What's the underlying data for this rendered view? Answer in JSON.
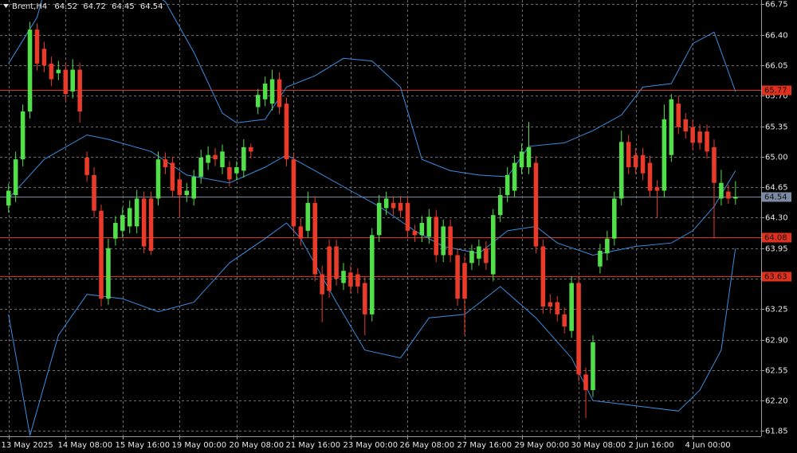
{
  "chart_data": {
    "type": "candlestick",
    "title": "Brent,H4",
    "header_values": [
      64.52,
      64.72,
      64.45,
      64.54
    ],
    "open": [
      64.44,
      64.56,
      64.97,
      65.52,
      66.46,
      66.24,
      66.07,
      65.96,
      66.0,
      65.75,
      66.0,
      64.99,
      64.79,
      64.38,
      63.37,
      64.06,
      64.15,
      64.2,
      64.2,
      64.52,
      64.52,
      64.52,
      64.97,
      64.93,
      64.74,
      64.56,
      64.52,
      64.77,
      64.93,
      65.02,
      64.88,
      64.88,
      64.81,
      64.84,
      65.11,
      65.57,
      65.66,
      65.61,
      65.89,
      65.61,
      64.97,
      64.2,
      64.15,
      64.47,
      63.65,
      63.97,
      63.97,
      63.55,
      63.67,
      63.65,
      63.55,
      63.19,
      64.1,
      64.41,
      64.47,
      64.47,
      64.47,
      64.15,
      64.1,
      64.08,
      64.31,
      63.87,
      64.2,
      63.87,
      63.78,
      63.78,
      63.83,
      63.95,
      63.65,
      64.33,
      64.56,
      64.61,
      64.88,
      64.88,
      64.93,
      63.97,
      63.33,
      63.33,
      63.19,
      63.0,
      63.55,
      62.5,
      62.32,
      63.74,
      63.89,
      64.06,
      64.52,
      65.17,
      65.02,
      65.02,
      64.93,
      64.65,
      64.61,
      65.02,
      65.61,
      65.43,
      65.34,
      65.29,
      65.29,
      65.11,
      64.52,
      64.6,
      64.52
    ],
    "high": [
      64.69,
      65.06,
      65.6,
      66.55,
      66.53,
      66.32,
      66.15,
      66.1,
      66.08,
      66.12,
      66.08,
      65.06,
      64.88,
      64.45,
      64.06,
      64.32,
      64.42,
      64.5,
      64.62,
      64.6,
      64.6,
      65.06,
      65.05,
      65.0,
      64.82,
      64.7,
      64.85,
      65.08,
      65.12,
      65.1,
      65.14,
      64.95,
      64.95,
      65.2,
      65.15,
      65.78,
      65.92,
      66.0,
      65.97,
      65.68,
      65.05,
      64.3,
      64.6,
      64.55,
      63.75,
      64.05,
      64.05,
      63.78,
      63.75,
      63.72,
      63.62,
      64.18,
      64.56,
      64.6,
      64.55,
      64.55,
      64.55,
      64.22,
      64.32,
      64.4,
      64.39,
      64.28,
      64.28,
      63.95,
      63.86,
      63.99,
      64.05,
      64.03,
      64.4,
      64.65,
      64.88,
      65.02,
      65.15,
      65.4,
      65.01,
      64.05,
      63.42,
      63.4,
      63.27,
      63.63,
      63.63,
      62.58,
      62.95,
      64.0,
      64.15,
      64.6,
      65.3,
      65.25,
      65.1,
      65.1,
      65.01,
      64.73,
      65.6,
      65.72,
      65.7,
      65.5,
      65.42,
      65.37,
      65.37,
      65.2,
      64.85,
      64.68,
      64.72
    ],
    "low": [
      64.36,
      64.48,
      64.89,
      65.44,
      65.99,
      65.97,
      65.81,
      65.88,
      65.64,
      65.67,
      65.39,
      64.71,
      64.3,
      63.28,
      63.3,
      63.98,
      64.07,
      64.12,
      64.12,
      63.89,
      63.87,
      64.44,
      64.8,
      64.53,
      64.3,
      64.48,
      64.44,
      64.69,
      64.85,
      64.89,
      64.8,
      64.66,
      64.73,
      64.76,
      64.98,
      65.49,
      65.58,
      65.53,
      65.49,
      64.89,
      64.12,
      63.98,
      64.07,
      63.57,
      63.1,
      63.38,
      63.52,
      63.47,
      63.43,
      63.43,
      62.95,
      63.11,
      64.02,
      64.33,
      64.33,
      64.3,
      64.07,
      64.02,
      64.02,
      64.0,
      63.79,
      63.79,
      63.79,
      63.29,
      62.95,
      63.7,
      63.75,
      63.7,
      63.57,
      64.25,
      64.48,
      64.53,
      64.8,
      64.8,
      63.89,
      63.2,
      63.2,
      63.11,
      62.97,
      62.92,
      62.42,
      62.0,
      62.24,
      63.66,
      63.81,
      63.98,
      64.44,
      64.8,
      64.8,
      64.73,
      64.53,
      64.3,
      64.53,
      64.94,
      65.26,
      65.21,
      65.08,
      65.08,
      64.98,
      64.06,
      64.44,
      64.46,
      64.45
    ],
    "close": [
      64.61,
      64.97,
      65.52,
      66.46,
      66.07,
      66.05,
      65.89,
      66.0,
      65.72,
      66.0,
      65.52,
      64.79,
      64.38,
      63.37,
      63.95,
      64.24,
      64.33,
      64.41,
      64.52,
      63.97,
      63.92,
      64.97,
      64.88,
      64.61,
      64.56,
      64.61,
      64.77,
      64.99,
      65.02,
      64.97,
      65.06,
      64.74,
      64.88,
      65.11,
      65.06,
      65.71,
      65.84,
      65.89,
      65.57,
      64.97,
      64.2,
      64.06,
      64.47,
      63.65,
      63.42,
      63.46,
      63.6,
      63.69,
      63.51,
      63.51,
      63.19,
      64.1,
      64.47,
      64.52,
      64.41,
      64.38,
      64.15,
      64.1,
      64.24,
      64.31,
      63.87,
      64.2,
      63.87,
      63.37,
      63.37,
      63.92,
      63.97,
      63.78,
      64.33,
      64.56,
      64.79,
      64.93,
      65.06,
      65.11,
      63.97,
      63.28,
      63.28,
      63.19,
      63.05,
      63.55,
      62.5,
      62.32,
      62.87,
      63.92,
      64.06,
      64.52,
      65.17,
      64.88,
      64.88,
      64.81,
      64.61,
      64.61,
      65.43,
      65.66,
      65.34,
      65.29,
      65.16,
      65.16,
      65.06,
      64.7,
      64.7,
      64.52,
      64.54
    ],
    "up_color": "#52e04a",
    "down_color": "#ea3b2a",
    "bands": [
      {
        "color": "#3a8ee0",
        "x": [
          0,
          4,
          5,
          10,
          18,
          22,
          26,
          30,
          32,
          36,
          39,
          43,
          47,
          51,
          55,
          58,
          62,
          66,
          70,
          73,
          78,
          82,
          86,
          89,
          93,
          96,
          99,
          102
        ],
        "values": [
          66.07,
          66.6,
          66.9,
          67.3,
          67.0,
          66.78,
          66.2,
          65.5,
          65.39,
          65.43,
          65.8,
          65.93,
          66.13,
          66.1,
          65.8,
          64.97,
          64.84,
          64.79,
          64.77,
          65.12,
          65.16,
          65.3,
          65.48,
          65.8,
          65.84,
          66.3,
          66.43,
          65.75
        ]
      },
      {
        "color": "#3a8ee0",
        "x": [
          0,
          5,
          11,
          14,
          20,
          25,
          31,
          36,
          39,
          43,
          48,
          52,
          57,
          61,
          66,
          70,
          74,
          77,
          82,
          85,
          88,
          93,
          96,
          99,
          102
        ],
        "values": [
          64.52,
          64.97,
          65.25,
          65.2,
          65.06,
          64.79,
          64.7,
          64.88,
          65.02,
          64.84,
          64.61,
          64.43,
          64.15,
          63.97,
          63.89,
          64.15,
          64.2,
          64.01,
          63.87,
          63.92,
          63.97,
          64.01,
          64.15,
          64.43,
          64.84
        ]
      },
      {
        "color": "#3a8ee0",
        "x": [
          0,
          3,
          7,
          11,
          16,
          21,
          26,
          31,
          36,
          39,
          41,
          46,
          50,
          55,
          59,
          64,
          69,
          74,
          79,
          82,
          88,
          94,
          97,
          100,
          102
        ],
        "values": [
          63.19,
          61.8,
          62.95,
          63.42,
          63.37,
          63.22,
          63.33,
          63.78,
          64.06,
          64.24,
          64.06,
          63.33,
          62.78,
          62.69,
          63.15,
          63.19,
          63.51,
          63.15,
          62.69,
          62.2,
          62.14,
          62.08,
          62.32,
          62.78,
          63.95
        ]
      }
    ],
    "levels": [
      {
        "value": 65.77,
        "color": "#e0301e"
      },
      {
        "value": 64.54,
        "color": "#7d8aa3"
      },
      {
        "value": 64.08,
        "color": "#e0301e"
      },
      {
        "value": 63.63,
        "color": "#e0301e"
      }
    ],
    "xlim": [
      -1.2,
      105.6
    ],
    "ylim": [
      61.79,
      66.8
    ],
    "xticks": [
      {
        "value": 0,
        "label": "13 May 2025"
      },
      {
        "value": 8,
        "label": "14 May 08:00"
      },
      {
        "value": 16,
        "label": "15 May 16:00"
      },
      {
        "value": 24,
        "label": "19 May 00:00"
      },
      {
        "value": 32,
        "label": "20 May 08:00"
      },
      {
        "value": 40,
        "label": "21 May 16:00"
      },
      {
        "value": 48,
        "label": "23 May 00:00"
      },
      {
        "value": 56,
        "label": "26 May 08:00"
      },
      {
        "value": 64,
        "label": "27 May 16:00"
      },
      {
        "value": 72,
        "label": "29 May 00:00"
      },
      {
        "value": 80,
        "label": "30 May 08:00"
      },
      {
        "value": 88,
        "label": "2 Jun 16:00"
      },
      {
        "value": 96,
        "label": "4 Jun 00:00"
      }
    ],
    "yticks": [
      66.75,
      {
        "value": 66.4,
        "label": "66.40"
      },
      66.05,
      {
        "value": 65.7,
        "label": "65.70"
      },
      65.35,
      {
        "value": 65.0,
        "label": "65.00"
      },
      64.65,
      {
        "value": 64.3,
        "label": "64.30"
      },
      63.95,
      {
        "value": 63.6,
        "label": "63.60"
      },
      63.25,
      {
        "value": 62.9,
        "label": "62.90"
      },
      62.55,
      {
        "value": 62.2,
        "label": "62.20"
      },
      61.85
    ],
    "grid": true
  }
}
